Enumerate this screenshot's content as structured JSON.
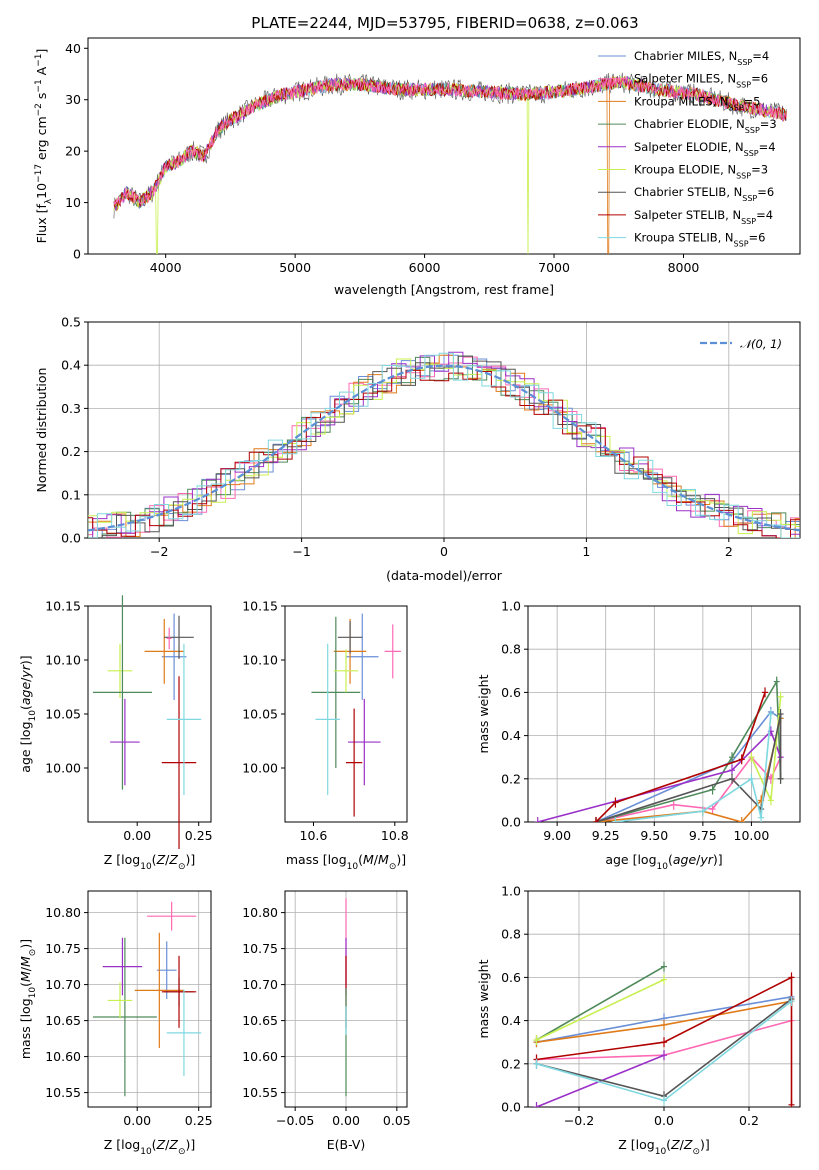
{
  "figure_title": "PLATE=2244, MJD=53795, FIBERID=0638, z=0.063",
  "colors": {
    "Chabrier MILES": "#6a8fd6",
    "Salpeter MILES": "#ff69b4",
    "Kroupa MILES": "#e07b1a",
    "Chabrier ELODIE": "#4f8a5a",
    "Salpeter ELODIE": "#9b30c8",
    "Kroupa ELODIE": "#c8f050",
    "Chabrier STELIB": "#555555",
    "Salpeter STELIB": "#b00000",
    "Kroupa STELIB": "#7fd8e0",
    "normal": "#5b8fd6"
  },
  "legend_entries": [
    {
      "name": "Chabrier MILES",
      "pre": "Chabrier MILES, N",
      "sub": "SSP",
      "post": "=4"
    },
    {
      "name": "Salpeter MILES",
      "pre": "Salpeter MILES, N",
      "sub": "SSP",
      "post": "=6"
    },
    {
      "name": "Kroupa MILES",
      "pre": "Kroupa MILES, N",
      "sub": "SSP",
      "post": "=5"
    },
    {
      "name": "Chabrier ELODIE",
      "pre": "Chabrier ELODIE, N",
      "sub": "SSP",
      "post": "=3"
    },
    {
      "name": "Salpeter ELODIE",
      "pre": "Salpeter ELODIE, N",
      "sub": "SSP",
      "post": "=4"
    },
    {
      "name": "Kroupa ELODIE",
      "pre": "Kroupa ELODIE, N",
      "sub": "SSP",
      "post": "=3"
    },
    {
      "name": "Chabrier STELIB",
      "pre": "Chabrier STELIB, N",
      "sub": "SSP",
      "post": "=6"
    },
    {
      "name": "Salpeter STELIB",
      "pre": "Salpeter STELIB, N",
      "sub": "SSP",
      "post": "=4"
    },
    {
      "name": "Kroupa STELIB",
      "pre": "Kroupa STELIB, N",
      "sub": "SSP",
      "post": "=6"
    }
  ],
  "chart_data": [
    {
      "id": "spectrum",
      "type": "line",
      "xlabel": "wavelength [Angstrom, rest frame]",
      "ylabel": "Flux [f",
      "ylabel_full": "Flux [fλ10⁻¹⁷ erg cm⁻² s⁻¹ A⁻¹]",
      "xlim": [
        3400,
        8900
      ],
      "ylim": [
        0,
        42
      ],
      "xticks": [
        4000,
        5000,
        6000,
        7000,
        8000
      ],
      "yticks": [
        0,
        10,
        20,
        30,
        40
      ],
      "continuum_knots": [
        [
          3600,
          9
        ],
        [
          3700,
          12
        ],
        [
          3800,
          10
        ],
        [
          3900,
          12
        ],
        [
          4000,
          17
        ],
        [
          4100,
          18
        ],
        [
          4200,
          20
        ],
        [
          4300,
          19
        ],
        [
          4400,
          24
        ],
        [
          4500,
          26
        ],
        [
          4700,
          29
        ],
        [
          4900,
          31
        ],
        [
          5100,
          32
        ],
        [
          5300,
          33
        ],
        [
          5500,
          33
        ],
        [
          5800,
          32
        ],
        [
          6000,
          32
        ],
        [
          6200,
          32
        ],
        [
          6500,
          31.5
        ],
        [
          6800,
          31
        ],
        [
          7000,
          31.5
        ],
        [
          7300,
          32.5
        ],
        [
          7500,
          33.5
        ],
        [
          7800,
          32
        ],
        [
          8100,
          31
        ],
        [
          8400,
          29
        ],
        [
          8800,
          27
        ]
      ],
      "series_wavelength_range": [
        3600,
        8800
      ],
      "dips": [
        [
          3934,
          0
        ],
        [
          6800,
          0
        ],
        [
          7420,
          0
        ]
      ]
    },
    {
      "id": "residuals",
      "type": "histogram",
      "xlabel": "(data-model)/error",
      "ylabel": "Normed distribution",
      "xlim": [
        -2.5,
        2.5
      ],
      "ylim": [
        0,
        0.5
      ],
      "xticks": [
        -2,
        -1,
        0,
        1,
        2
      ],
      "yticks": [
        0,
        0.1,
        0.2,
        0.3,
        0.4,
        0.5
      ],
      "bin_width": 0.1,
      "normal_label": "𝒩(0, 1)"
    },
    {
      "id": "age_vs_Z",
      "type": "errorbar",
      "xlabel": "Z [log10(Z/Z⊙)]",
      "ylabel": "age [log10(age/yr)]",
      "xlim": [
        -0.2,
        0.3
      ],
      "ylim": [
        9.95,
        10.15
      ],
      "xticks": [
        0.0,
        0.25
      ],
      "yticks": [
        10.0,
        10.05,
        10.1,
        10.15
      ],
      "points": [
        {
          "s": "Chabrier MILES",
          "x": 0.15,
          "xe": 0.05,
          "y": 10.103,
          "ye": 0.04
        },
        {
          "s": "Kroupa MILES",
          "x": 0.11,
          "xe": 0.08,
          "y": 10.108,
          "ye": 0.03
        },
        {
          "s": "Chabrier STELIB",
          "x": 0.17,
          "xe": 0.06,
          "y": 10.121,
          "ye": 0.02
        },
        {
          "s": "Salpeter STELIB",
          "x": 0.17,
          "xe": 0.07,
          "y": 10.005,
          "ye": 0.08
        },
        {
          "s": "Kroupa STELIB",
          "x": 0.19,
          "xe": 0.07,
          "y": 10.045,
          "ye": 0.07
        },
        {
          "s": "Kroupa ELODIE",
          "x": -0.07,
          "xe": 0.05,
          "y": 10.09,
          "ye": 0.025
        },
        {
          "s": "Chabrier ELODIE",
          "x": -0.06,
          "xe": 0.12,
          "y": 10.07,
          "ye": 0.09
        },
        {
          "s": "Salpeter ELODIE",
          "x": -0.05,
          "xe": 0.06,
          "y": 10.024,
          "ye": 0.04
        },
        {
          "s": "Salpeter MILES",
          "x": 0.13,
          "xe": 0.01,
          "y": 10.12,
          "ye": 0.01
        }
      ]
    },
    {
      "id": "age_vs_mass",
      "type": "errorbar",
      "xlabel": "mass [log10(M/M⊙)]",
      "ylabel": "",
      "xlim": [
        10.53,
        10.83
      ],
      "ylim": [
        9.95,
        10.15
      ],
      "xticks": [
        10.6,
        10.8
      ],
      "yticks": [
        10.0,
        10.05,
        10.1,
        10.15
      ],
      "points": [
        {
          "s": "Chabrier MILES",
          "x": 10.72,
          "xe": 0.04,
          "y": 10.103,
          "ye": 0.04
        },
        {
          "s": "Salpeter MILES",
          "x": 10.795,
          "xe": 0.02,
          "y": 10.108,
          "ye": 0.025
        },
        {
          "s": "Kroupa MILES",
          "x": 10.69,
          "xe": 0.04,
          "y": 10.108,
          "ye": 0.03
        },
        {
          "s": "Chabrier ELODIE",
          "x": 10.655,
          "xe": 0.06,
          "y": 10.07,
          "ye": 0.07
        },
        {
          "s": "Salpeter ELODIE",
          "x": 10.725,
          "xe": 0.04,
          "y": 10.024,
          "ye": 0.04
        },
        {
          "s": "Kroupa ELODIE",
          "x": 10.68,
          "xe": 0.03,
          "y": 10.09,
          "ye": 0.02
        },
        {
          "s": "Chabrier STELIB",
          "x": 10.69,
          "xe": 0.03,
          "y": 10.121,
          "ye": 0.015
        },
        {
          "s": "Salpeter STELIB",
          "x": 10.7,
          "xe": 0.02,
          "y": 10.005,
          "ye": 0.05
        },
        {
          "s": "Kroupa STELIB",
          "x": 10.635,
          "xe": 0.03,
          "y": 10.045,
          "ye": 0.07
        }
      ]
    },
    {
      "id": "massweight_vs_age",
      "type": "line",
      "xlabel": "age [log10(age/yr)]",
      "ylabel": "mass weight",
      "xlim": [
        8.85,
        10.25
      ],
      "ylim": [
        0,
        1
      ],
      "xticks": [
        9.0,
        9.25,
        9.5,
        9.75,
        10.0
      ],
      "yticks": [
        0.0,
        0.2,
        0.4,
        0.6,
        0.8,
        1.0
      ],
      "series": [
        {
          "name": "Chabrier MILES",
          "pts": [
            [
              9.2,
              0.0
            ],
            [
              9.9,
              0.28
            ],
            [
              10.1,
              0.51
            ],
            [
              10.15,
              0.48
            ]
          ]
        },
        {
          "name": "Salpeter MILES",
          "pts": [
            [
              9.2,
              0.0
            ],
            [
              9.6,
              0.08
            ],
            [
              9.8,
              0.06
            ],
            [
              10.0,
              0.3
            ],
            [
              10.1,
              0.2
            ],
            [
              10.15,
              0.3
            ]
          ]
        },
        {
          "name": "Kroupa MILES",
          "pts": [
            [
              9.2,
              0.0
            ],
            [
              9.75,
              0.05
            ],
            [
              9.95,
              0.0
            ],
            [
              10.05,
              0.1
            ],
            [
              10.15,
              0.48
            ]
          ]
        },
        {
          "name": "Chabrier ELODIE",
          "pts": [
            [
              9.2,
              0.0
            ],
            [
              9.8,
              0.15
            ],
            [
              9.9,
              0.3
            ],
            [
              10.13,
              0.65
            ],
            [
              10.15,
              0.2
            ]
          ]
        },
        {
          "name": "Salpeter ELODIE",
          "pts": [
            [
              8.9,
              0.0
            ],
            [
              9.9,
              0.24
            ],
            [
              10.1,
              0.42
            ],
            [
              10.15,
              0.3
            ]
          ]
        },
        {
          "name": "Kroupa ELODIE",
          "pts": [
            [
              10.0,
              0.3
            ],
            [
              10.1,
              0.1
            ],
            [
              10.15,
              0.58
            ]
          ]
        },
        {
          "name": "Chabrier STELIB",
          "pts": [
            [
              9.2,
              0.0
            ],
            [
              9.9,
              0.2
            ],
            [
              10.05,
              0.06
            ],
            [
              10.15,
              0.5
            ],
            [
              10.15,
              0.2
            ]
          ]
        },
        {
          "name": "Salpeter STELIB",
          "pts": [
            [
              9.2,
              0.0
            ],
            [
              9.3,
              0.09
            ],
            [
              9.95,
              0.29
            ],
            [
              10.07,
              0.6
            ]
          ]
        },
        {
          "name": "Kroupa STELIB",
          "pts": [
            [
              9.3,
              0.0
            ],
            [
              9.75,
              0.05
            ],
            [
              10.0,
              0.2
            ],
            [
              10.05,
              0.02
            ],
            [
              10.1,
              0.5
            ]
          ]
        }
      ]
    },
    {
      "id": "mass_vs_Z",
      "type": "errorbar",
      "xlabel": "Z [log10(Z/Z⊙)]",
      "ylabel": "mass [log10(M/M⊙)]",
      "xlim": [
        -0.2,
        0.3
      ],
      "ylim": [
        10.53,
        10.83
      ],
      "xticks": [
        0.0,
        0.25
      ],
      "yticks": [
        10.55,
        10.6,
        10.65,
        10.7,
        10.75,
        10.8
      ],
      "points": [
        {
          "s": "Chabrier MILES",
          "x": 0.12,
          "xe": 0.04,
          "y": 10.72,
          "ye": 0.04
        },
        {
          "s": "Salpeter MILES",
          "x": 0.14,
          "xe": 0.1,
          "y": 10.795,
          "ye": 0.02
        },
        {
          "s": "Kroupa MILES",
          "x": 0.09,
          "xe": 0.1,
          "y": 10.692,
          "ye": 0.08
        },
        {
          "s": "Chabrier ELODIE",
          "x": -0.05,
          "xe": 0.13,
          "y": 10.655,
          "ye": 0.11
        },
        {
          "s": "Salpeter ELODIE",
          "x": -0.06,
          "xe": 0.08,
          "y": 10.725,
          "ye": 0.04
        },
        {
          "s": "Kroupa ELODIE",
          "x": -0.07,
          "xe": 0.05,
          "y": 10.678,
          "ye": 0.025
        },
        {
          "s": "Chabrier STELIB",
          "x": 0.17,
          "xe": 0.06,
          "y": 10.69,
          "ye": 0.02
        },
        {
          "s": "Salpeter STELIB",
          "x": 0.17,
          "xe": 0.07,
          "y": 10.69,
          "ye": 0.05
        },
        {
          "s": "Kroupa STELIB",
          "x": 0.19,
          "xe": 0.07,
          "y": 10.633,
          "ye": 0.06
        }
      ]
    },
    {
      "id": "mass_vs_ebv",
      "type": "errorbar",
      "xlabel": "E(B-V)",
      "ylabel": "",
      "xlim": [
        -0.06,
        0.06
      ],
      "ylim": [
        10.53,
        10.83
      ],
      "xticks": [
        -0.05,
        0.0,
        0.05
      ],
      "yticks": [
        10.55,
        10.6,
        10.65,
        10.7,
        10.75,
        10.8
      ],
      "points": [
        {
          "s": "Salpeter MILES",
          "x": 0,
          "xe": 0,
          "y": 10.76,
          "ye": 0.06
        },
        {
          "s": "Salpeter ELODIE",
          "x": 0,
          "xe": 0,
          "y": 10.725,
          "ye": 0.04
        },
        {
          "s": "Salpeter STELIB",
          "x": 0,
          "xe": 0,
          "y": 10.69,
          "ye": 0.05
        },
        {
          "s": "Chabrier ELODIE",
          "x": 0,
          "xe": 0,
          "y": 10.62,
          "ye": 0.075
        },
        {
          "s": "Kroupa STELIB",
          "x": 0,
          "xe": 0,
          "y": 10.65,
          "ye": 0.02
        }
      ]
    },
    {
      "id": "massweight_vs_Z",
      "type": "line",
      "xlabel": "Z [log10(Z/Z⊙)]",
      "ylabel": "mass weight",
      "xlim": [
        -0.32,
        0.32
      ],
      "ylim": [
        0,
        1
      ],
      "xticks": [
        -0.2,
        0.0,
        0.2
      ],
      "yticks": [
        0.0,
        0.2,
        0.4,
        0.6,
        0.8,
        1.0
      ],
      "series": [
        {
          "name": "Chabrier MILES",
          "pts": [
            [
              -0.3,
              0.3
            ],
            [
              0.0,
              0.41
            ],
            [
              0.3,
              0.51
            ]
          ]
        },
        {
          "name": "Salpeter MILES",
          "pts": [
            [
              -0.3,
              0.22
            ],
            [
              0.0,
              0.24
            ],
            [
              0.3,
              0.4
            ]
          ]
        },
        {
          "name": "Kroupa MILES",
          "pts": [
            [
              -0.3,
              0.3
            ],
            [
              0.0,
              0.38
            ],
            [
              0.3,
              0.49
            ]
          ]
        },
        {
          "name": "Chabrier ELODIE",
          "pts": [
            [
              -0.3,
              0.31
            ],
            [
              0.0,
              0.65
            ]
          ]
        },
        {
          "name": "Salpeter ELODIE",
          "pts": [
            [
              -0.3,
              0.0
            ],
            [
              0.0,
              0.24
            ]
          ]
        },
        {
          "name": "Kroupa ELODIE",
          "pts": [
            [
              -0.3,
              0.31
            ],
            [
              0.0,
              0.59
            ]
          ]
        },
        {
          "name": "Chabrier STELIB",
          "pts": [
            [
              -0.3,
              0.2
            ],
            [
              0.0,
              0.05
            ],
            [
              0.3,
              0.5
            ]
          ]
        },
        {
          "name": "Salpeter STELIB",
          "pts": [
            [
              -0.3,
              0.22
            ],
            [
              0.0,
              0.3
            ],
            [
              0.3,
              0.6
            ],
            [
              0.3,
              0.01
            ]
          ]
        },
        {
          "name": "Kroupa STELIB",
          "pts": [
            [
              -0.3,
              0.2
            ],
            [
              0.0,
              0.03
            ],
            [
              0.3,
              0.49
            ]
          ]
        }
      ]
    }
  ]
}
